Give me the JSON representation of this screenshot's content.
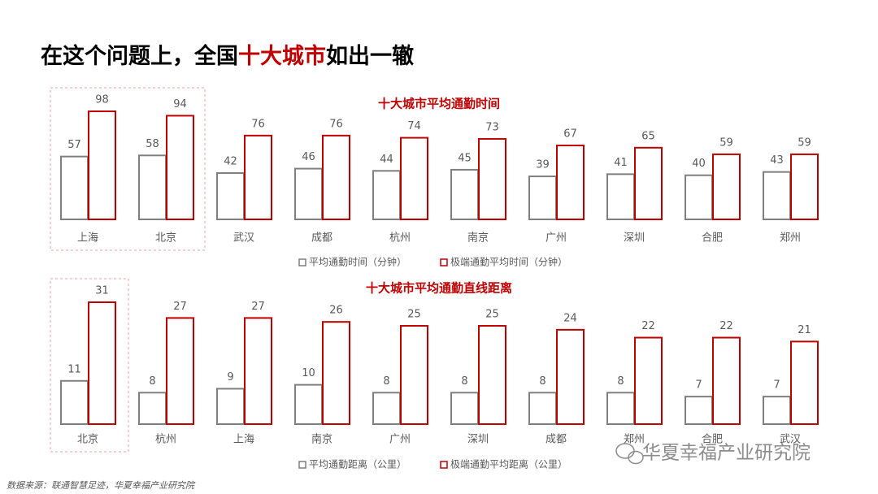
{
  "headline": [
    "在这个问题上，全国",
    "十大城市",
    "如出一辙"
  ],
  "source": "数据来源：联通智慧足迹，华夏幸福产业研究院",
  "watermark": "华夏幸福产业研究院",
  "chart_data": [
    {
      "type": "bar",
      "title": "十大城市平均通勤时间",
      "categories": [
        "上海",
        "北京",
        "武汉",
        "成都",
        "杭州",
        "南京",
        "广州",
        "深圳",
        "合肥",
        "郑州"
      ],
      "series": [
        {
          "name": "平均通勤时间（分钟）",
          "color": "#7f7f7f",
          "values": [
            57,
            58,
            42,
            46,
            44,
            45,
            39,
            41,
            40,
            43
          ]
        },
        {
          "name": "极端通勤平均时间（分钟）",
          "color": "#c00000",
          "values": [
            98,
            94,
            76,
            76,
            74,
            73,
            67,
            65,
            59,
            59
          ]
        }
      ]
    },
    {
      "type": "bar",
      "title": "十大城市平均通勤直线距离",
      "categories": [
        "北京",
        "杭州",
        "上海",
        "南京",
        "广州",
        "深圳",
        "成都",
        "郑州",
        "合肥",
        "武汉"
      ],
      "series": [
        {
          "name": "平均通勤距离（公里）",
          "color": "#7f7f7f",
          "values": [
            11,
            8,
            9,
            10,
            8,
            8,
            8,
            8,
            7,
            7
          ]
        },
        {
          "name": "极端通勤平均距离（公里）",
          "color": "#c00000",
          "values": [
            31,
            27,
            27,
            26,
            25,
            25,
            24,
            22,
            22,
            21
          ]
        }
      ]
    }
  ]
}
